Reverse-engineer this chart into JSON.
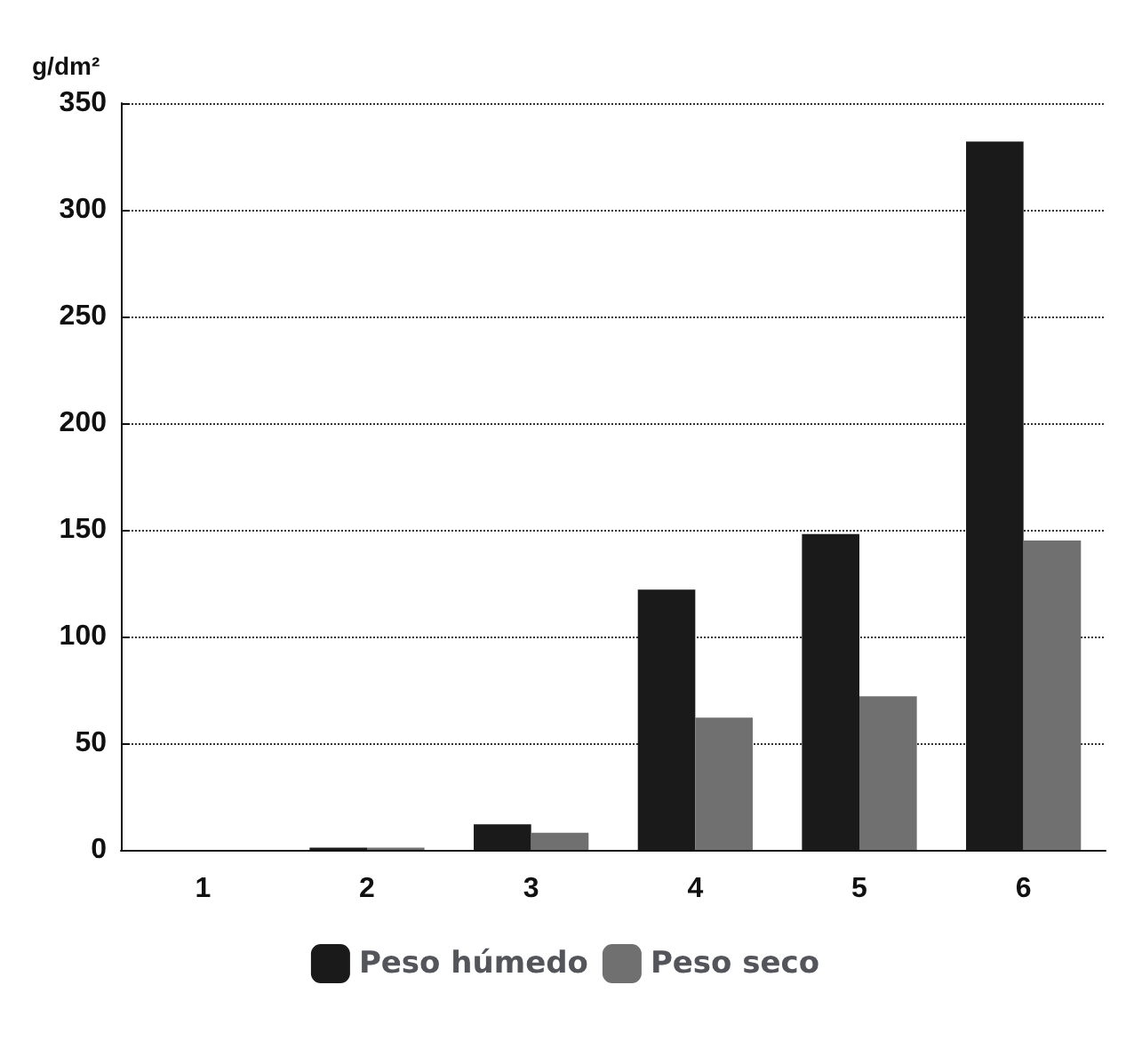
{
  "chart_data": {
    "type": "bar",
    "ylabel": "g/dm²",
    "categories": [
      "1",
      "2",
      "3",
      "4",
      "5",
      "6"
    ],
    "series": [
      {
        "name": "Peso húmedo",
        "color": "#1a1a1a",
        "values": [
          0,
          1,
          12,
          122,
          148,
          332
        ]
      },
      {
        "name": "Peso seco",
        "color": "#707070",
        "values": [
          0,
          1,
          8,
          62,
          72,
          145
        ]
      }
    ],
    "ylim": [
      0,
      350
    ],
    "yticks": [
      0,
      50,
      100,
      150,
      200,
      250,
      300,
      350
    ],
    "grid": "y",
    "legend": "bottom"
  }
}
